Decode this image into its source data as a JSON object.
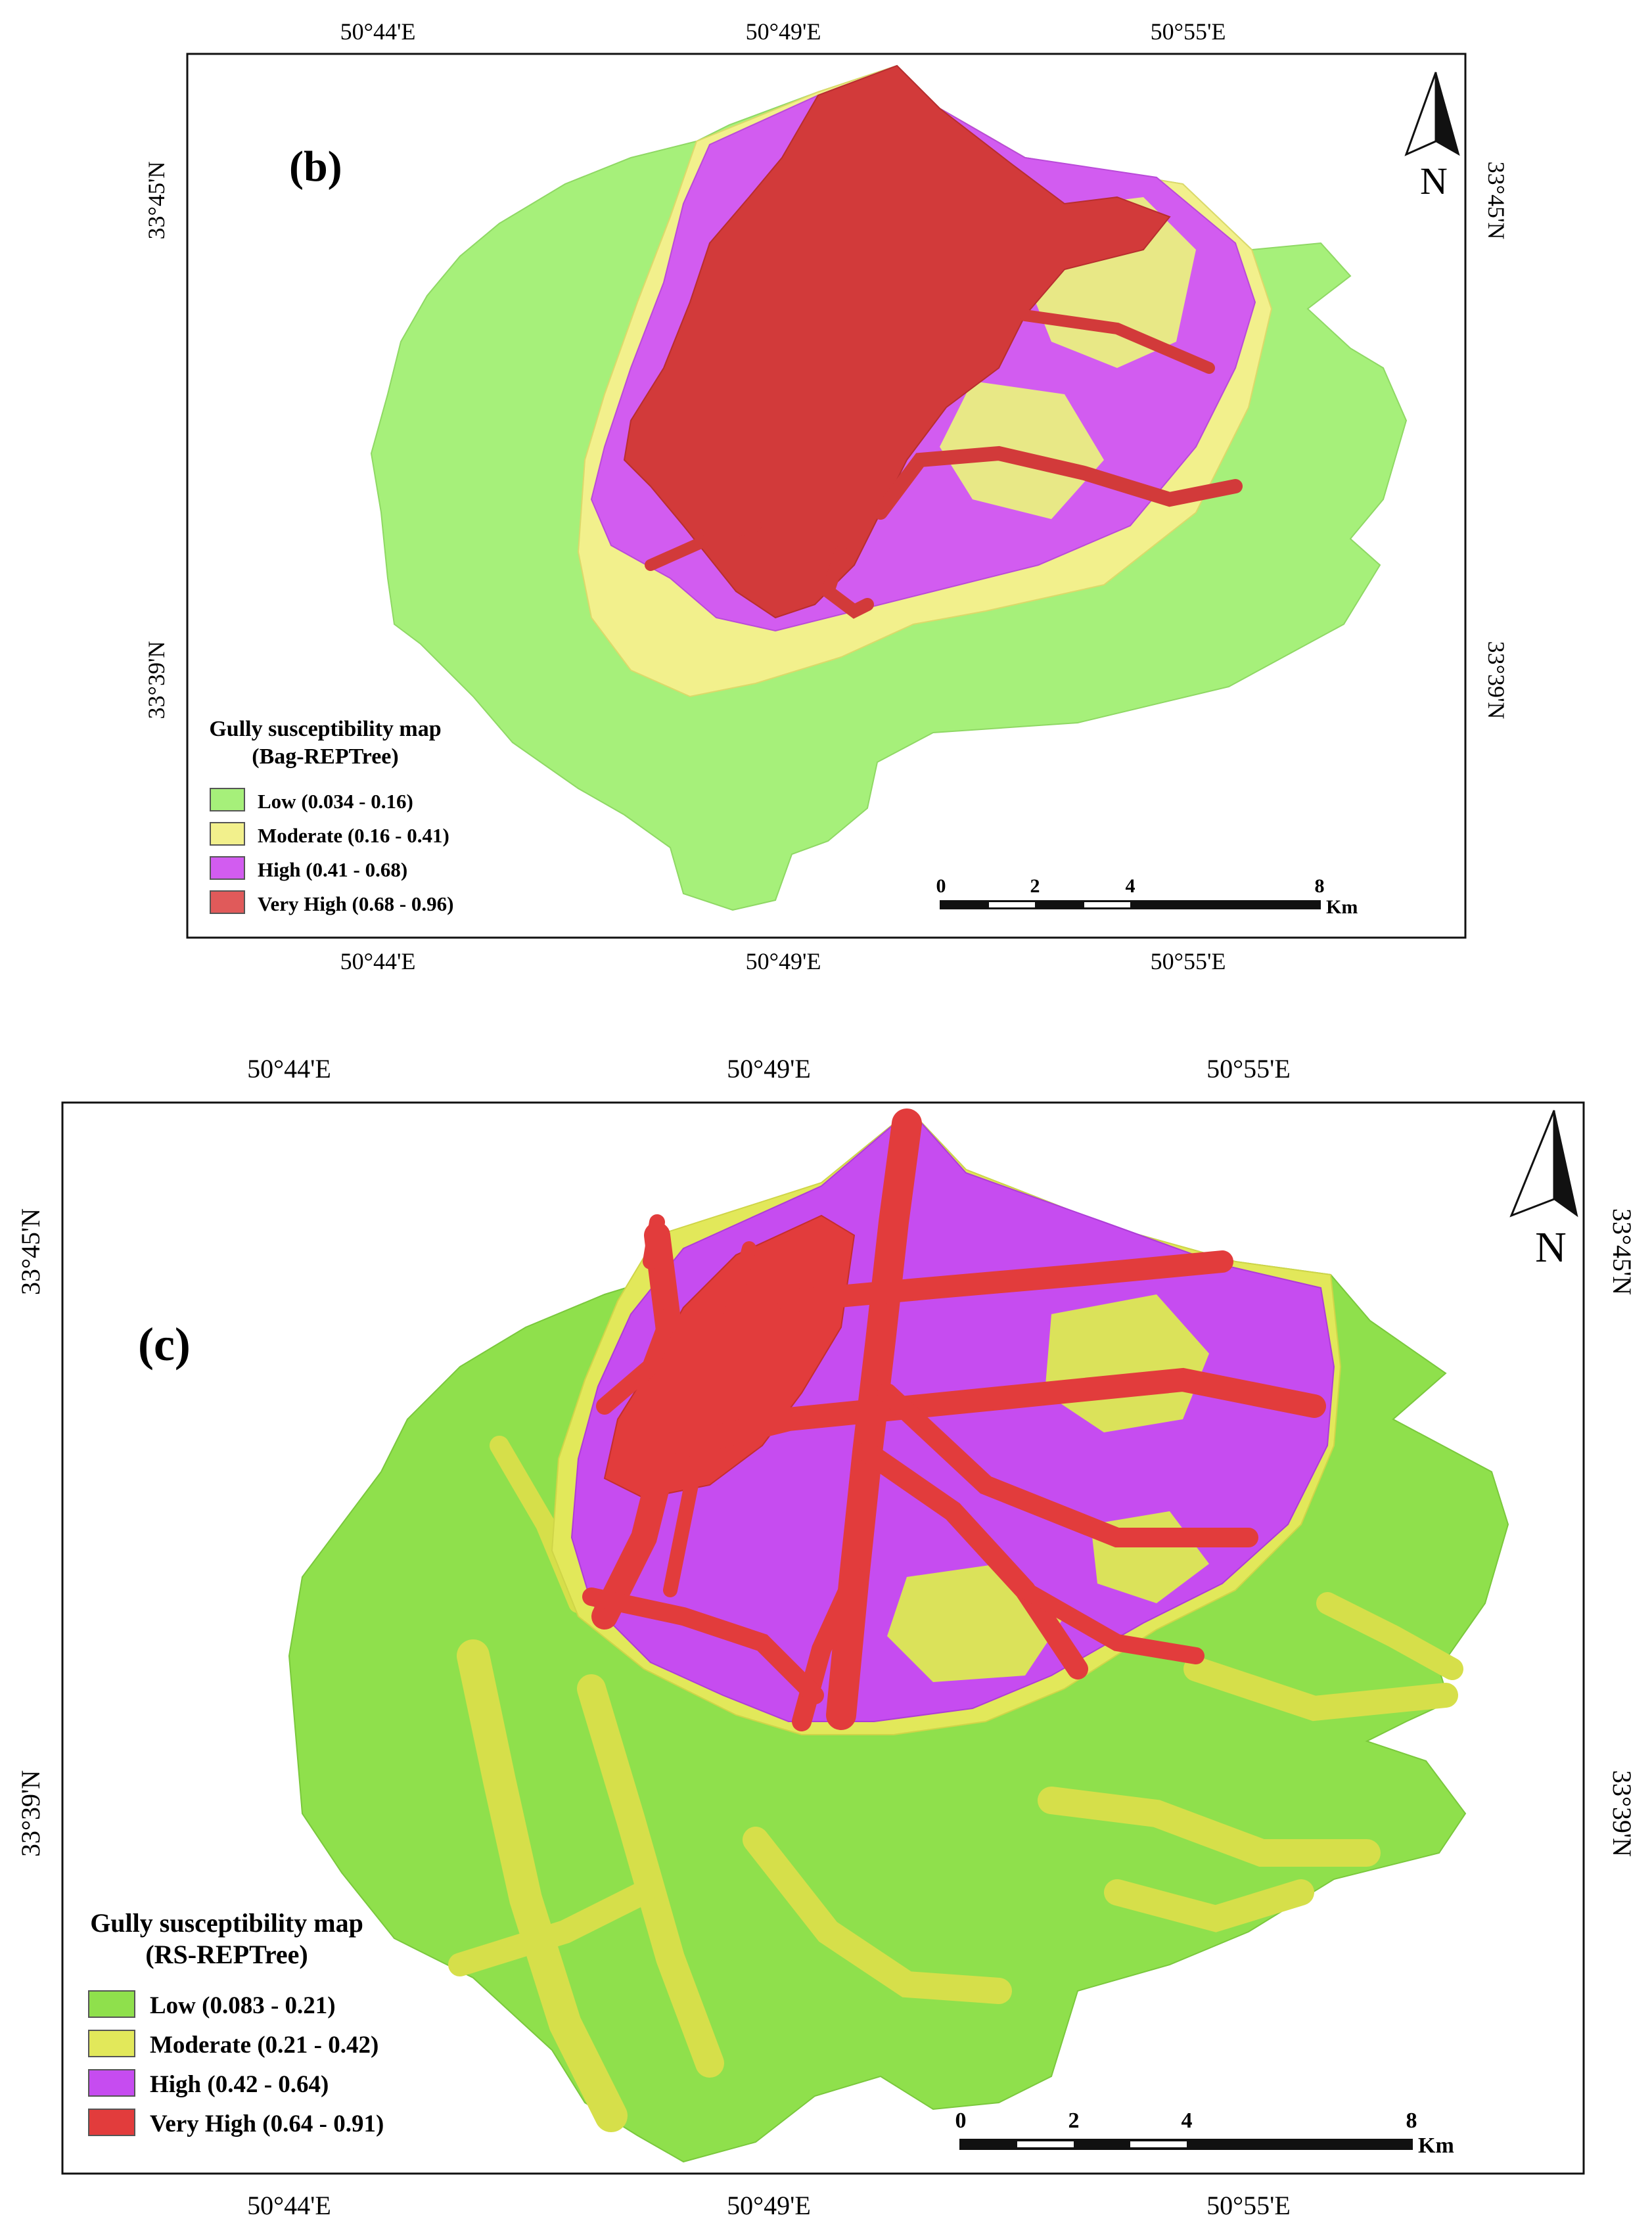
{
  "maps": [
    {
      "panel_label": "(b)",
      "top_coords": [
        "50°44'E",
        "50°49'E",
        "50°55'E"
      ],
      "bottom_coords": [
        "50°44'E",
        "50°49'E",
        "50°55'E"
      ],
      "left_coords": [
        "33°45'N",
        "33°39'N"
      ],
      "right_coords": [
        "33°45'N",
        "33°39'N"
      ],
      "north_label": "N",
      "legend": {
        "title_line1": "Gully susceptibility map",
        "title_line2": "(Bag-REPTree)",
        "items": [
          {
            "label": "Low (0.034 - 0.16)",
            "color": "#a6f07a"
          },
          {
            "label": "Moderate (0.16 - 0.41)",
            "color": "#f2f08c"
          },
          {
            "label": "High (0.41 - 0.68)",
            "color": "#d25cf0"
          },
          {
            "label": "Very High (0.68 - 0.96)",
            "color": "#e05a5a"
          }
        ]
      },
      "scale_bar": {
        "ticks": [
          "0",
          "2",
          "4",
          "8"
        ],
        "unit": "Km"
      }
    },
    {
      "panel_label": "(c)",
      "top_coords": [
        "50°44'E",
        "50°49'E",
        "50°55'E"
      ],
      "bottom_coords": [
        "50°44'E",
        "50°49'E",
        "50°55'E"
      ],
      "left_coords": [
        "33°45'N",
        "33°39'N"
      ],
      "right_coords": [
        "33°45'N",
        "33°39'N"
      ],
      "north_label": "N",
      "legend": {
        "title_line1": "Gully susceptibility map",
        "title_line2": "(RS-REPTree)",
        "items": [
          {
            "label": "Low (0.083 - 0.21)",
            "color": "#8fe04c"
          },
          {
            "label": "Moderate (0.21 - 0.42)",
            "color": "#e2e85a"
          },
          {
            "label": "High (0.42 - 0.64)",
            "color": "#c64cf0"
          },
          {
            "label": "Very High (0.64 - 0.91)",
            "color": "#e23c3c"
          }
        ]
      },
      "scale_bar": {
        "ticks": [
          "0",
          "2",
          "4",
          "8"
        ],
        "unit": "Km"
      }
    }
  ]
}
